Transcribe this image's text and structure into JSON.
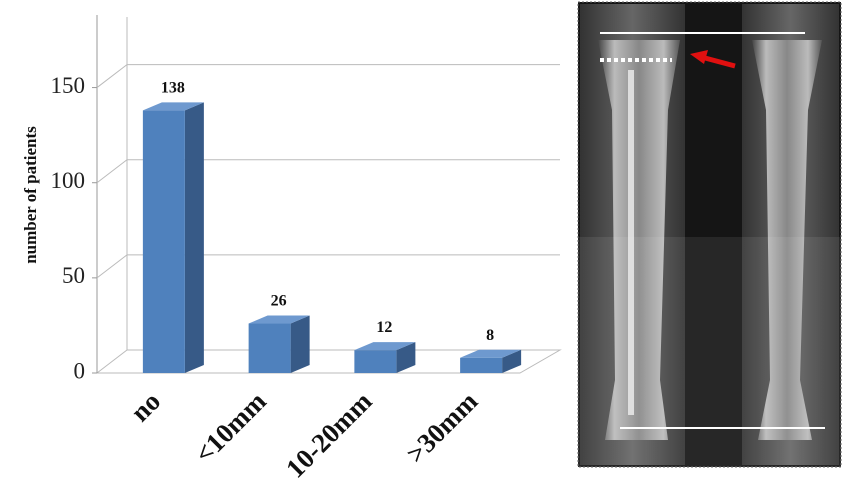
{
  "chart_data": {
    "type": "bar3d",
    "ylabel": "number of patients",
    "categories": [
      "no",
      "<10mm",
      "10-20mm",
      ">30mm"
    ],
    "values": [
      138,
      26,
      12,
      8
    ],
    "color": "#4f81bd",
    "ylim": [
      0,
      175
    ],
    "yticks": [
      0,
      50,
      100,
      150
    ],
    "grid": true
  }
}
